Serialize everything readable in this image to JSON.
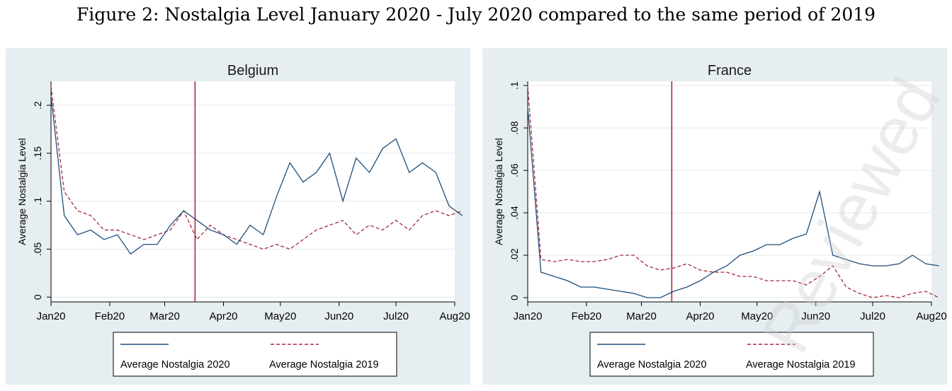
{
  "figure_title": "Figure 2: Nostalgia Level January 2020 - July 2020 compared to the same period of 2019",
  "watermark_text": "Reviewed",
  "colors": {
    "series_2020": "#1f4e79",
    "series_2019": "#a32b3c",
    "vline": "#b0173a",
    "panel_bg": "#e6eef2"
  },
  "chart_data": [
    {
      "type": "line",
      "title": "Belgium",
      "ylabel": "Average Nostalgia Level",
      "xlabel": "",
      "x_unit": "days since Jan 1 2020",
      "xlim": [
        0,
        213
      ],
      "ylim": [
        -0.005,
        0.225
      ],
      "yticks": [
        0,
        0.05,
        0.1,
        0.15,
        0.2
      ],
      "ytick_labels": [
        "0",
        ".05",
        ".1",
        ".15",
        ".2"
      ],
      "xticks": [
        0,
        31,
        60,
        91,
        121,
        152,
        182,
        213
      ],
      "xtick_labels": [
        "Jan20",
        "Feb20",
        "Mar20",
        "Apr20",
        "May20",
        "Jun20",
        "Jul20",
        "Aug20"
      ],
      "vline_x": 76,
      "legend_position": "bottom",
      "series": [
        {
          "name": "Average Nostalgia 2020",
          "style": "solid",
          "color": "#1f4e79",
          "step": 7,
          "values": [
            0.21,
            0.085,
            0.065,
            0.07,
            0.06,
            0.065,
            0.045,
            0.055,
            0.055,
            0.075,
            0.09,
            0.08,
            0.07,
            0.065,
            0.055,
            0.075,
            0.065,
            0.105,
            0.14,
            0.12,
            0.13,
            0.15,
            0.1,
            0.145,
            0.13,
            0.155,
            0.165,
            0.13,
            0.14,
            0.13,
            0.095,
            0.085
          ]
        },
        {
          "name": "Average Nostalgia 2019",
          "style": "dashed",
          "color": "#a32b3c",
          "step": 7,
          "values": [
            0.22,
            0.11,
            0.09,
            0.085,
            0.07,
            0.07,
            0.065,
            0.06,
            0.065,
            0.07,
            0.09,
            0.06,
            0.075,
            0.065,
            0.06,
            0.055,
            0.05,
            0.055,
            0.05,
            0.06,
            0.07,
            0.075,
            0.08,
            0.065,
            0.075,
            0.07,
            0.08,
            0.07,
            0.085,
            0.09,
            0.085,
            0.09
          ]
        }
      ]
    },
    {
      "type": "line",
      "title": "France",
      "ylabel": "Average Nostalgia Level",
      "xlabel": "",
      "x_unit": "days since Jan 1 2020",
      "xlim": [
        0,
        213
      ],
      "ylim": [
        -0.002,
        0.102
      ],
      "yticks": [
        0,
        0.02,
        0.04,
        0.06,
        0.08,
        0.1
      ],
      "ytick_labels": [
        "0",
        ".02",
        ".04",
        ".06",
        ".08",
        ".1"
      ],
      "xticks": [
        0,
        31,
        60,
        91,
        121,
        152,
        182,
        213
      ],
      "xtick_labels": [
        "Jan20",
        "Feb20",
        "Mar20",
        "Apr20",
        "May20",
        "Jun20",
        "Jul20",
        "Aug20"
      ],
      "vline_x": 76,
      "legend_position": "bottom",
      "series": [
        {
          "name": "Average Nostalgia 2020",
          "style": "solid",
          "color": "#1f4e79",
          "step": 7,
          "values": [
            0.09,
            0.012,
            0.01,
            0.008,
            0.005,
            0.005,
            0.004,
            0.003,
            0.002,
            0.0,
            0.0,
            0.003,
            0.005,
            0.008,
            0.012,
            0.015,
            0.02,
            0.022,
            0.025,
            0.025,
            0.028,
            0.03,
            0.05,
            0.02,
            0.018,
            0.016,
            0.015,
            0.015,
            0.016,
            0.02,
            0.016,
            0.015
          ]
        },
        {
          "name": "Average Nostalgia 2019",
          "style": "dashed",
          "color": "#a32b3c",
          "step": 7,
          "values": [
            0.1,
            0.018,
            0.017,
            0.018,
            0.017,
            0.017,
            0.018,
            0.02,
            0.02,
            0.015,
            0.013,
            0.014,
            0.016,
            0.013,
            0.012,
            0.012,
            0.01,
            0.01,
            0.008,
            0.008,
            0.008,
            0.006,
            0.01,
            0.015,
            0.005,
            0.002,
            0.0,
            0.001,
            0.0,
            0.002,
            0.003,
            0.0
          ]
        }
      ]
    }
  ]
}
